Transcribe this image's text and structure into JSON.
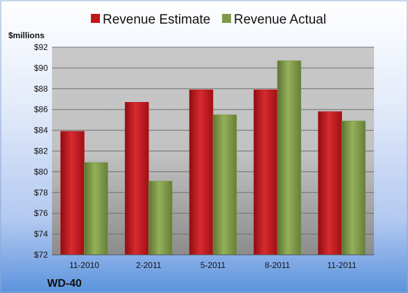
{
  "colors": {
    "estimate": "#c0161c",
    "actual": "#7f9a48"
  },
  "legend": {
    "estimate_label": "Revenue Estimate",
    "actual_label": "Revenue Actual"
  },
  "company": "WD-40",
  "chart_data": {
    "type": "bar",
    "unit_label": "$millions",
    "categories": [
      "11-2010",
      "2-2011",
      "5-2011",
      "8-2011",
      "11-2011"
    ],
    "series": [
      {
        "name": "Revenue Estimate",
        "values": [
          83.9,
          86.7,
          87.9,
          87.9,
          85.8
        ]
      },
      {
        "name": "Revenue Actual",
        "values": [
          80.9,
          79.1,
          85.5,
          90.7,
          84.9
        ]
      }
    ],
    "ylim": [
      72,
      92
    ],
    "yticks": [
      "$72",
      "$74",
      "$76",
      "$78",
      "$80",
      "$82",
      "$84",
      "$86",
      "$88",
      "$90",
      "$92"
    ],
    "grid": true,
    "legend_position": "top"
  }
}
